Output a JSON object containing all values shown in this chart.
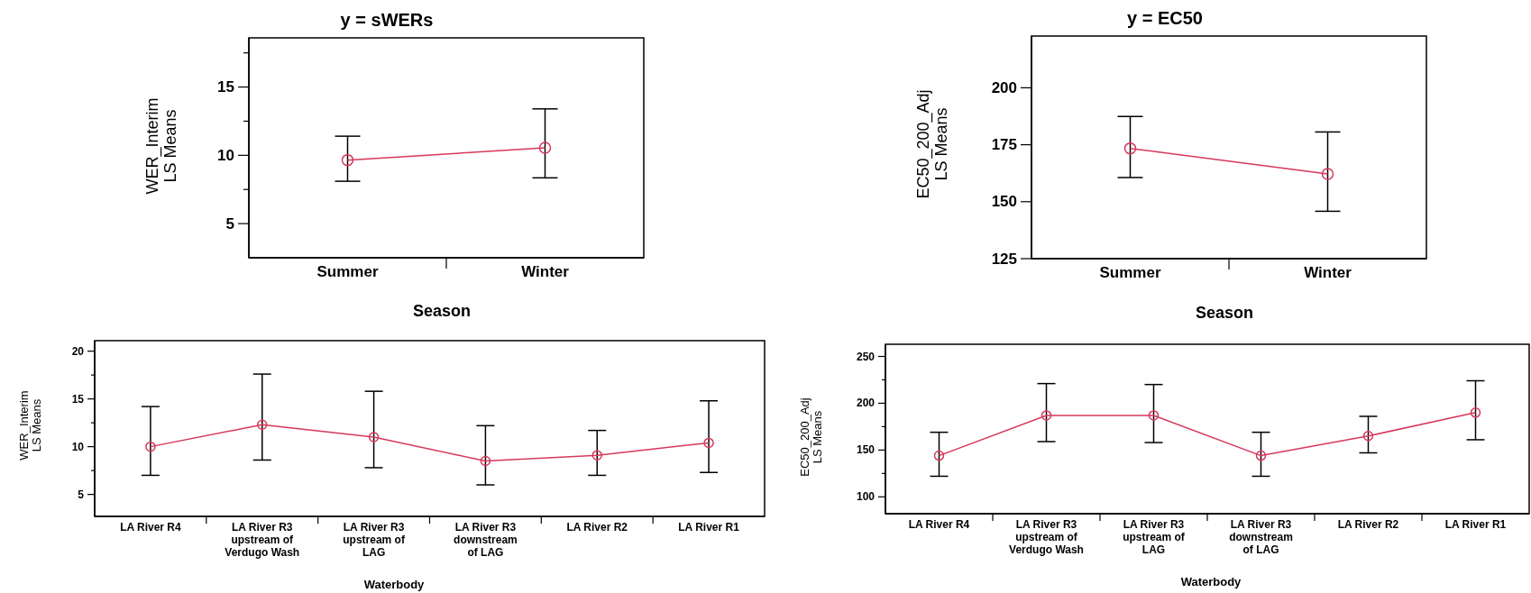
{
  "chart_data": [
    {
      "type": "line",
      "title": "y = sWERs",
      "xlabel": "Season",
      "ylabel": "WER_Interim\nLS Means",
      "categories": [
        "Summer",
        "Winter"
      ],
      "marker": "circle",
      "ylim": [
        2.5,
        18.6
      ],
      "yticks": [
        5,
        {
          "value": 7.5,
          "label": null
        },
        10,
        {
          "value": 12.5,
          "label": null
        },
        15,
        {
          "value": 17.5,
          "label": null
        }
      ],
      "series": [
        {
          "color": "#d6385a",
          "values": [
            9.65,
            10.55
          ],
          "errors": [
            [
              8.1,
              11.4
            ],
            [
              8.35,
              13.4
            ]
          ]
        }
      ]
    },
    {
      "type": "line",
      "title": "y = EC50",
      "xlabel": "Season",
      "ylabel": "EC50_200_Adj\nLS Means",
      "categories": [
        "Summer",
        "Winter"
      ],
      "marker": "circle",
      "ylim": [
        125,
        222.7
      ],
      "yticks": [
        125,
        150,
        175,
        200
      ],
      "series": [
        {
          "color": "#d6385a",
          "values": [
            173.4,
            162.2
          ],
          "errors": [
            [
              160.6,
              187.4
            ],
            [
              145.8,
              180.6
            ]
          ]
        }
      ]
    },
    {
      "type": "line",
      "xlabel": "Waterbody",
      "ylabel": "WER_Interim\nLS Means",
      "categories": [
        "LA River R4",
        "LA River R3 upstream of Verdugo Wash",
        "LA River R3 upstream of LAG",
        "LA River R3 downstream of LAG",
        "LA River R2",
        "LA River R1"
      ],
      "marker": "circle",
      "ylim": [
        2.7,
        21.1
      ],
      "yticks": [
        5,
        {
          "value": 7.5,
          "label": null
        },
        10,
        {
          "value": 12.5,
          "label": null
        },
        15,
        {
          "value": 17.5,
          "label": null
        },
        20
      ],
      "series": [
        {
          "color": "#d6385a",
          "values": [
            10.0,
            12.3,
            11.0,
            8.5,
            9.1,
            10.4
          ],
          "errors": [
            [
              7.0,
              14.2
            ],
            [
              8.6,
              17.6
            ],
            [
              7.8,
              15.8
            ],
            [
              6.0,
              12.2
            ],
            [
              7.0,
              11.7
            ],
            [
              7.3,
              14.8
            ]
          ]
        }
      ]
    },
    {
      "type": "line",
      "xlabel": "Waterbody",
      "ylabel": "EC50_200_Adj\nLS Means",
      "categories": [
        "LA River R4",
        "LA River R3 upstream of Verdugo Wash",
        "LA River R3 upstream of LAG",
        "LA River R3 downstream of LAG",
        "LA River R2",
        "LA River R1"
      ],
      "marker": "circle",
      "ylim": [
        82,
        263
      ],
      "yticks": [
        100,
        {
          "value": 125,
          "label": null
        },
        150,
        {
          "value": 175,
          "label": null
        },
        200,
        {
          "value": 225,
          "label": null
        },
        250
      ],
      "series": [
        {
          "color": "#d6385a",
          "values": [
            144,
            187,
            187,
            144,
            165,
            190
          ],
          "errors": [
            [
              122,
              169
            ],
            [
              159,
              221
            ],
            [
              158,
              220
            ],
            [
              122,
              169
            ],
            [
              147,
              186
            ],
            [
              161,
              224
            ]
          ]
        }
      ]
    }
  ]
}
